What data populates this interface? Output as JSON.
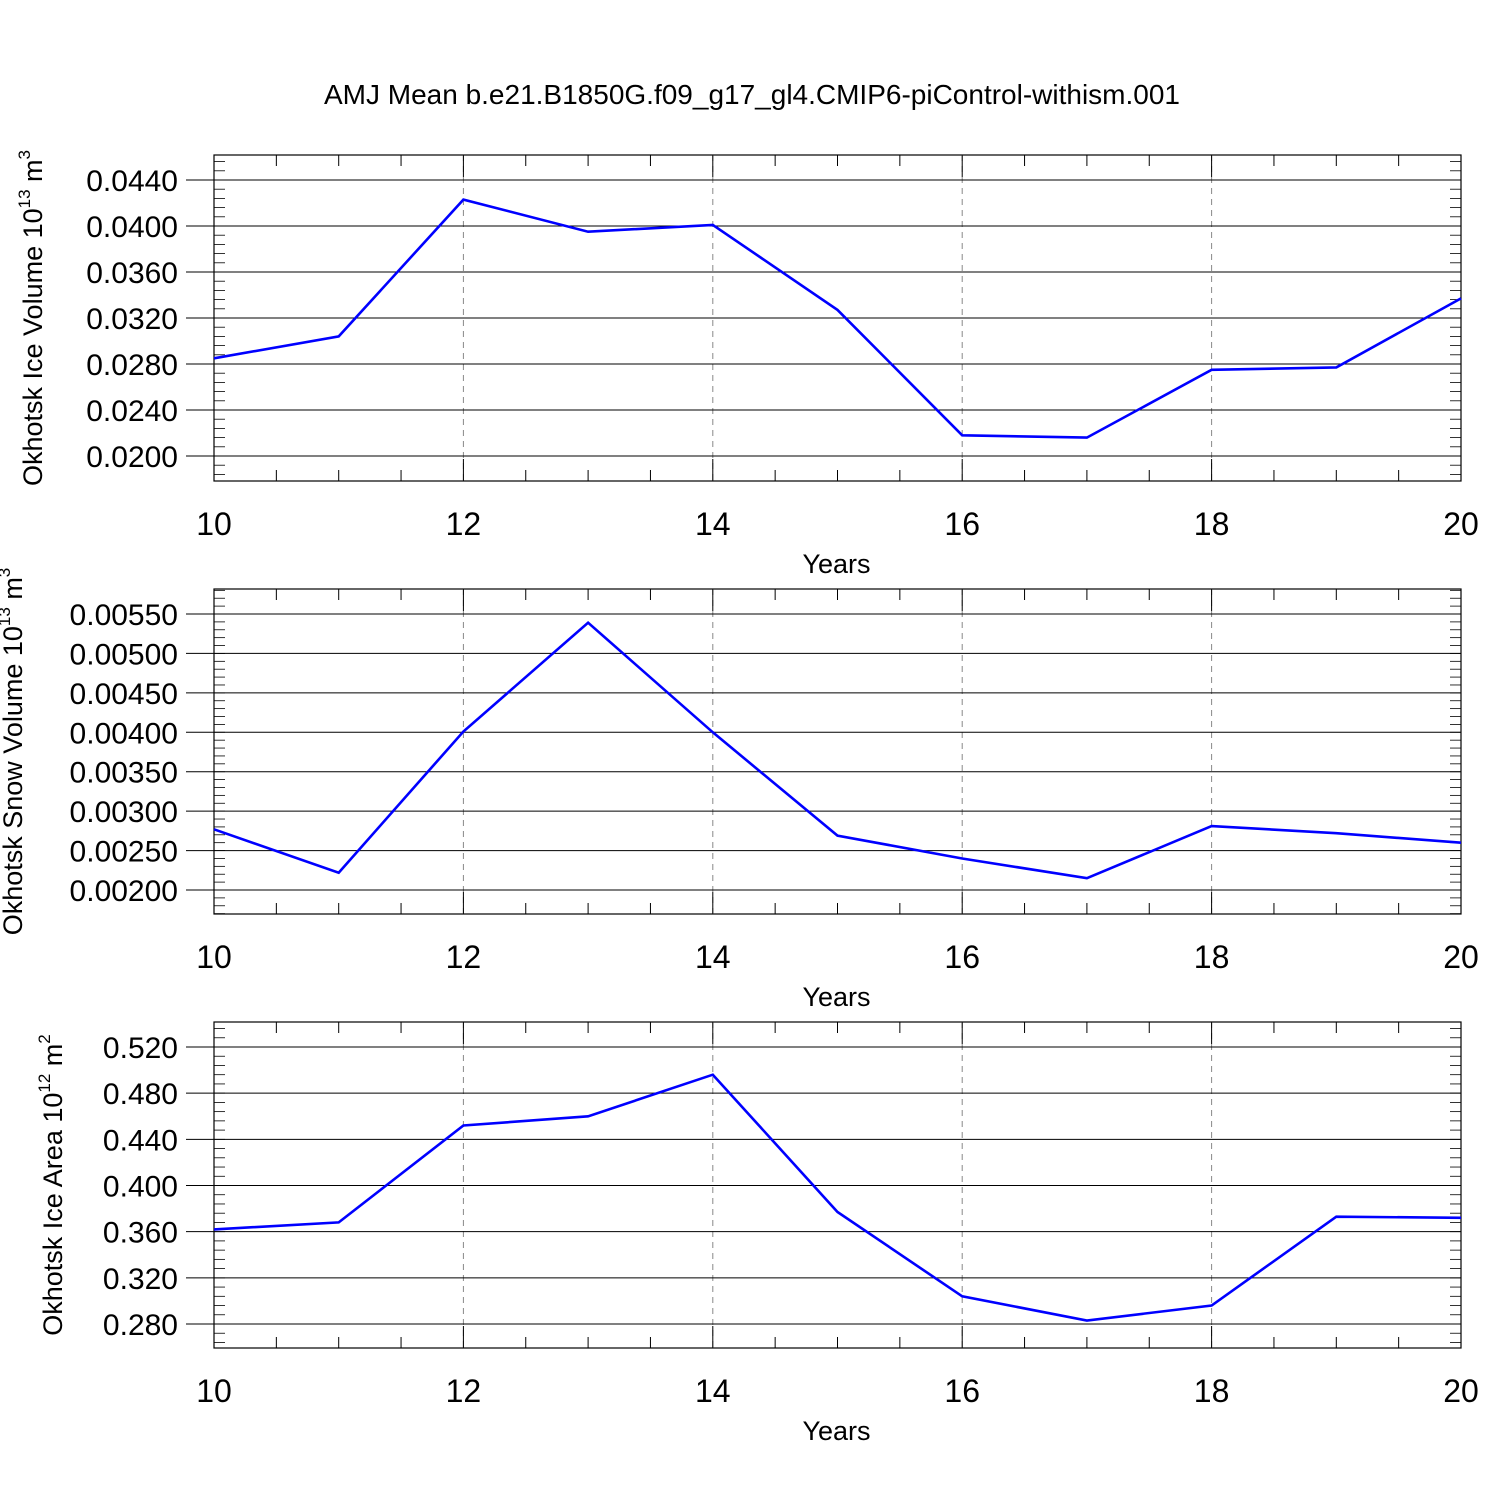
{
  "figure": {
    "title": "AMJ Mean b.e21.B1850G.f09_g17_gl4.CMIP6-piControl-withism.001"
  },
  "chart_data": [
    {
      "type": "line",
      "ylabel": {
        "base": "Okhotsk Ice Volume 10",
        "exp": "13",
        "unit": " m",
        "unit_exp": "3"
      },
      "xlabel": "Years",
      "xlim": [
        10,
        20
      ],
      "ylim": [
        0.02,
        0.044
      ],
      "xticks": [
        10,
        12,
        14,
        16,
        18,
        20
      ],
      "yticks": [
        "0.0200",
        "0.0240",
        "0.0280",
        "0.0320",
        "0.0360",
        "0.0400",
        "0.0440"
      ],
      "line_color": "#0000ff",
      "grid": "dashed vertical at major x ticks",
      "series": [
        {
          "x": [
            10,
            11,
            12,
            13,
            14,
            15,
            16,
            17,
            18,
            19,
            20
          ],
          "values": [
            0.0285,
            0.0304,
            0.0423,
            0.0395,
            0.0401,
            0.0327,
            0.0218,
            0.0216,
            0.0275,
            0.0277,
            0.0337
          ]
        }
      ]
    },
    {
      "type": "line",
      "ylabel": {
        "base": "Okhotsk Snow Volume 10",
        "exp": "13",
        "unit": " m",
        "unit_exp": "3"
      },
      "xlabel": "Years",
      "xlim": [
        10,
        20
      ],
      "ylim": [
        0.002,
        0.0055
      ],
      "xticks": [
        10,
        12,
        14,
        16,
        18,
        20
      ],
      "yticks": [
        "0.00200",
        "0.00250",
        "0.00300",
        "0.00350",
        "0.00400",
        "0.00450",
        "0.00500",
        "0.00550"
      ],
      "line_color": "#0000ff",
      "grid": "dashed vertical at major x ticks",
      "series": [
        {
          "x": [
            10,
            11,
            12,
            13,
            14,
            15,
            16,
            17,
            18,
            19,
            20
          ],
          "values": [
            0.00277,
            0.00222,
            0.00401,
            0.00539,
            0.004,
            0.00269,
            0.0024,
            0.00215,
            0.00281,
            0.00272,
            0.0026
          ]
        }
      ]
    },
    {
      "type": "line",
      "ylabel": {
        "base": "Okhotsk Ice Area 10",
        "exp": "12",
        "unit": " m",
        "unit_exp": "2"
      },
      "xlabel": "Years",
      "xlim": [
        10,
        20
      ],
      "ylim": [
        0.28,
        0.52
      ],
      "xticks": [
        10,
        12,
        14,
        16,
        18,
        20
      ],
      "yticks": [
        "0.280",
        "0.320",
        "0.360",
        "0.400",
        "0.440",
        "0.480",
        "0.520"
      ],
      "line_color": "#0000ff",
      "grid": "dashed vertical at major x ticks",
      "series": [
        {
          "x": [
            10,
            11,
            12,
            13,
            14,
            15,
            16,
            17,
            18,
            19,
            20
          ],
          "values": [
            0.362,
            0.368,
            0.452,
            0.46,
            0.496,
            0.377,
            0.304,
            0.283,
            0.296,
            0.373,
            0.372
          ]
        }
      ]
    }
  ]
}
